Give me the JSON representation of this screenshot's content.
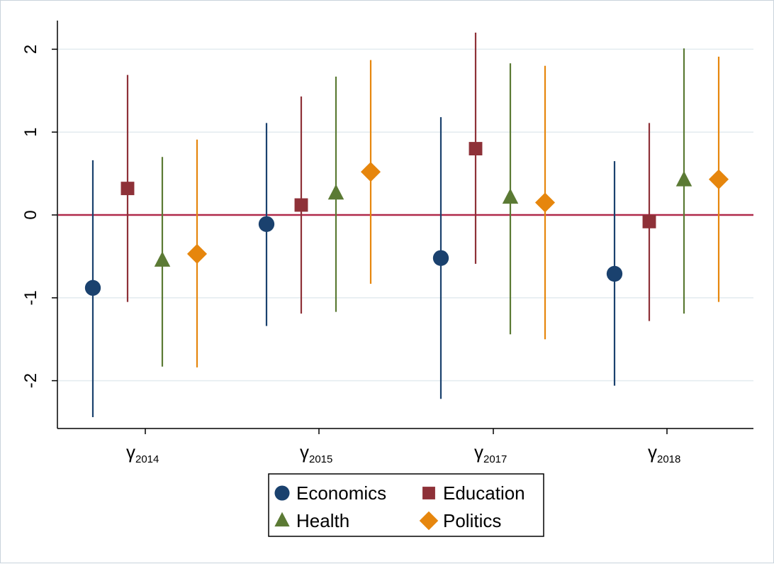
{
  "chart_data": {
    "type": "scatter",
    "subtype": "coefficient plot with confidence intervals",
    "categories": [
      {
        "symbol": "γ",
        "sub": "2014"
      },
      {
        "symbol": "γ",
        "sub": "2015"
      },
      {
        "symbol": "γ",
        "sub": "2017"
      },
      {
        "symbol": "γ",
        "sub": "2018"
      }
    ],
    "ylim": [
      -2.5,
      2.3
    ],
    "yticks": [
      -2,
      -1,
      0,
      1,
      2
    ],
    "ytick_labels": [
      "-2",
      "-1",
      "0",
      "1",
      "2"
    ],
    "reference_line": {
      "y": 0,
      "color": "#b02a4a"
    },
    "grid": true,
    "legend_position": "bottom",
    "series": [
      {
        "name": "Economics",
        "marker": "circle",
        "color": "#1a416e",
        "estimates": [
          -0.88,
          -0.11,
          -0.52,
          -0.71
        ],
        "ci_low": [
          -2.44,
          -1.34,
          -2.22,
          -2.06
        ],
        "ci_high": [
          0.66,
          1.11,
          1.18,
          0.65
        ]
      },
      {
        "name": "Education",
        "marker": "square",
        "color": "#8e3138",
        "estimates": [
          0.32,
          0.12,
          0.8,
          -0.08
        ],
        "ci_low": [
          -1.05,
          -1.19,
          -0.59,
          -1.28
        ],
        "ci_high": [
          1.69,
          1.43,
          2.2,
          1.11
        ]
      },
      {
        "name": "Health",
        "marker": "triangle",
        "color": "#5b7a34",
        "estimates": [
          -0.55,
          0.26,
          0.21,
          0.42
        ],
        "ci_low": [
          -1.83,
          -1.17,
          -1.44,
          -1.19
        ],
        "ci_high": [
          0.7,
          1.67,
          1.83,
          2.01
        ]
      },
      {
        "name": "Politics",
        "marker": "diamond",
        "color": "#e6860d",
        "estimates": [
          -0.47,
          0.52,
          0.15,
          0.43
        ],
        "ci_low": [
          -1.84,
          -0.83,
          -1.5,
          -1.05
        ],
        "ci_high": [
          0.91,
          1.87,
          1.8,
          1.91
        ]
      }
    ]
  }
}
